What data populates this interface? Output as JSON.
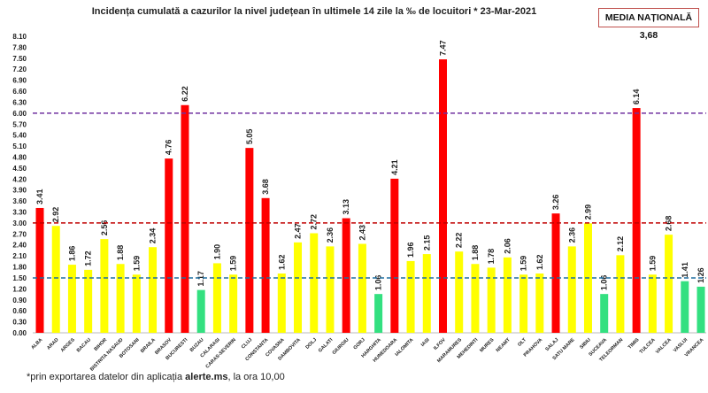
{
  "chart_data": {
    "type": "bar",
    "title": "Incidența cumulată a cazurilor la nivel județean în ultimele 14 zile la ‰ de locuitori *  23-Mar-2021",
    "national_average_label": "MEDIA NAȚIONALĂ 3,68",
    "footnote_pre": "*prin exportarea datelor din aplicația ",
    "footnote_bold": "alerte.ms",
    "footnote_post": ", la ora 10,00",
    "ylim": [
      0,
      8.1
    ],
    "ytick_step": 0.3,
    "grid": false,
    "categories": [
      "ALBA",
      "ARAD",
      "ARGES",
      "BACAU",
      "BIHOR",
      "BISTRITA NASAUD",
      "BOTOSANI",
      "BRAILA",
      "BRASOV",
      "BUCURESTI",
      "BUZAU",
      "CALARASI",
      "CARAS-SEVERIN",
      "CLUJ",
      "CONSTANTA",
      "COVASNA",
      "DAMBOVITA",
      "DOLJ",
      "GALATI",
      "GIURGIU",
      "GORJ",
      "HARGHITA",
      "HUNEDOARA",
      "IALOMITA",
      "IASI",
      "ILFOV",
      "MARAMURES",
      "MEHEDINTI",
      "MURES",
      "NEAMT",
      "OLT",
      "PRAHOVA",
      "SALAJ",
      "SATU MARE",
      "SIBIU",
      "SUCEAVA",
      "TELEORMAN",
      "TIMIS",
      "TULCEA",
      "VALCEA",
      "VASLUI",
      "VRANCEA"
    ],
    "values": [
      3.41,
      2.92,
      1.86,
      1.72,
      2.56,
      1.88,
      1.59,
      2.34,
      4.76,
      6.22,
      1.17,
      1.9,
      1.59,
      5.05,
      3.68,
      1.62,
      2.47,
      2.72,
      2.36,
      3.13,
      2.43,
      1.06,
      4.21,
      1.96,
      2.15,
      7.47,
      2.22,
      1.88,
      1.78,
      2.06,
      1.59,
      1.62,
      3.26,
      2.36,
      2.99,
      1.06,
      2.12,
      6.14,
      1.59,
      2.68,
      1.41,
      1.26
    ],
    "thresholds": [
      {
        "value": 6.0,
        "color": "#7030a0"
      },
      {
        "value": 3.0,
        "color": "#c00000"
      },
      {
        "value": 1.5,
        "color": "#1f6fa0"
      }
    ],
    "colors": {
      "high": "#ff0000",
      "medium": "#ffff00",
      "low": "#33e080"
    }
  }
}
